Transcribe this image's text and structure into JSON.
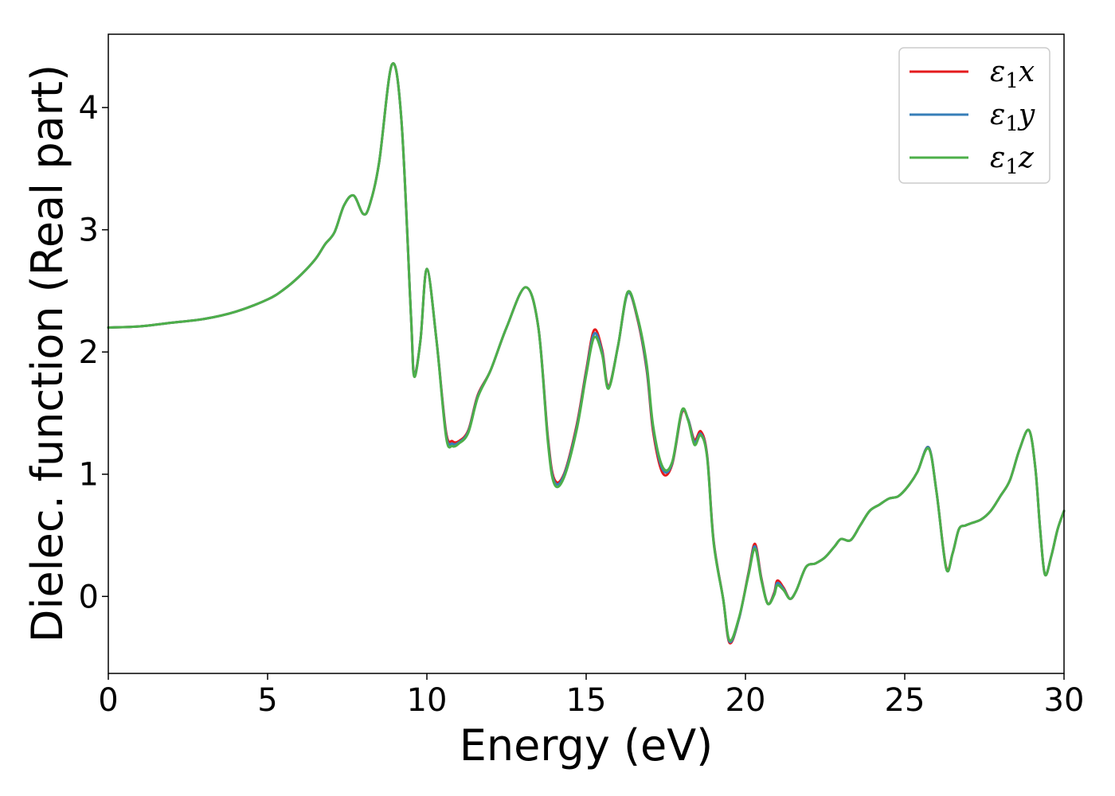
{
  "chart_data": {
    "type": "line",
    "xlabel": "Energy (eV)",
    "ylabel": "Dielec. function (Real part)",
    "xlim": [
      0,
      30
    ],
    "ylim": [
      -0.63,
      4.6
    ],
    "xticks": [
      0,
      5,
      10,
      15,
      20,
      25,
      30
    ],
    "yticks": [
      0,
      1,
      2,
      3,
      4
    ],
    "grid": false,
    "legend_position": "top-right",
    "series": [
      {
        "name": "ε1x",
        "symbol": "ε",
        "sub": "1",
        "axis": "x",
        "color": "#e41a1c",
        "x": [
          0,
          1,
          2,
          3,
          4,
          5,
          5.5,
          6,
          6.5,
          6.8,
          7.1,
          7.4,
          7.7,
          8.0,
          8.2,
          8.5,
          8.9,
          9.2,
          9.5,
          9.6,
          9.8,
          10.0,
          10.3,
          10.6,
          10.8,
          11.0,
          11.3,
          11.6,
          12.0,
          12.5,
          13.1,
          13.5,
          13.8,
          14.0,
          14.3,
          14.7,
          15.0,
          15.25,
          15.5,
          15.7,
          16.0,
          16.3,
          16.6,
          16.9,
          17.1,
          17.4,
          17.7,
          18.0,
          18.2,
          18.4,
          18.6,
          18.8,
          19.0,
          19.3,
          19.5,
          19.8,
          20.1,
          20.3,
          20.5,
          20.7,
          20.9,
          21.0,
          21.2,
          21.4,
          21.6,
          21.9,
          22.2,
          22.5,
          22.8,
          23.0,
          23.3,
          23.6,
          23.9,
          24.2,
          24.5,
          24.8,
          25.1,
          25.4,
          25.75,
          26.0,
          26.3,
          26.5,
          26.7,
          26.9,
          27.1,
          27.4,
          27.7,
          28.0,
          28.3,
          28.6,
          28.9,
          29.1,
          29.25,
          29.4,
          29.6,
          29.8,
          30.0
        ],
        "values": [
          2.2,
          2.21,
          2.24,
          2.27,
          2.33,
          2.43,
          2.51,
          2.62,
          2.76,
          2.88,
          2.98,
          3.2,
          3.28,
          3.13,
          3.2,
          3.55,
          4.35,
          3.9,
          2.3,
          1.82,
          2.1,
          2.68,
          2.1,
          1.35,
          1.27,
          1.27,
          1.36,
          1.65,
          1.85,
          2.2,
          2.53,
          2.2,
          1.3,
          0.96,
          1.0,
          1.4,
          1.85,
          2.18,
          2.02,
          1.72,
          2.05,
          2.48,
          2.28,
          1.85,
          1.35,
          1.01,
          1.08,
          1.5,
          1.45,
          1.28,
          1.35,
          1.15,
          0.46,
          -0.02,
          -0.38,
          -0.18,
          0.2,
          0.43,
          0.15,
          -0.06,
          0.03,
          0.13,
          0.07,
          -0.02,
          0.05,
          0.24,
          0.27,
          0.32,
          0.41,
          0.47,
          0.46,
          0.58,
          0.7,
          0.75,
          0.8,
          0.82,
          0.9,
          1.02,
          1.22,
          0.85,
          0.24,
          0.35,
          0.55,
          0.58,
          0.6,
          0.63,
          0.7,
          0.82,
          0.95,
          1.2,
          1.36,
          1.05,
          0.55,
          0.18,
          0.33,
          0.55,
          0.7
        ]
      },
      {
        "name": "ε1y",
        "symbol": "ε",
        "sub": "1",
        "axis": "y",
        "color": "#377eb8",
        "x": [
          0,
          1,
          2,
          3,
          4,
          5,
          5.5,
          6,
          6.5,
          6.8,
          7.1,
          7.4,
          7.7,
          8.0,
          8.2,
          8.5,
          8.9,
          9.2,
          9.5,
          9.6,
          9.8,
          10.0,
          10.3,
          10.6,
          10.8,
          11.0,
          11.3,
          11.6,
          12.0,
          12.5,
          13.1,
          13.5,
          13.8,
          14.0,
          14.3,
          14.7,
          15.0,
          15.25,
          15.5,
          15.7,
          16.0,
          16.3,
          16.6,
          16.9,
          17.1,
          17.4,
          17.7,
          18.0,
          18.2,
          18.4,
          18.6,
          18.8,
          19.0,
          19.3,
          19.5,
          19.8,
          20.1,
          20.3,
          20.5,
          20.7,
          20.9,
          21.0,
          21.2,
          21.4,
          21.6,
          21.9,
          22.2,
          22.5,
          22.8,
          23.0,
          23.3,
          23.6,
          23.9,
          24.2,
          24.5,
          24.8,
          25.1,
          25.4,
          25.75,
          26.0,
          26.3,
          26.5,
          26.7,
          26.9,
          27.1,
          27.4,
          27.7,
          28.0,
          28.3,
          28.6,
          28.9,
          29.1,
          29.25,
          29.4,
          29.6,
          29.8,
          30.0
        ],
        "values": [
          2.2,
          2.21,
          2.24,
          2.27,
          2.33,
          2.43,
          2.51,
          2.62,
          2.76,
          2.88,
          2.98,
          3.2,
          3.28,
          3.13,
          3.2,
          3.55,
          4.35,
          3.9,
          2.3,
          1.81,
          2.1,
          2.68,
          2.1,
          1.33,
          1.25,
          1.26,
          1.35,
          1.64,
          1.85,
          2.2,
          2.53,
          2.2,
          1.28,
          0.94,
          0.99,
          1.38,
          1.83,
          2.15,
          2.0,
          1.71,
          2.05,
          2.48,
          2.29,
          1.87,
          1.38,
          1.04,
          1.09,
          1.51,
          1.45,
          1.26,
          1.33,
          1.14,
          0.45,
          -0.02,
          -0.37,
          -0.18,
          0.19,
          0.41,
          0.14,
          -0.06,
          0.02,
          0.11,
          0.06,
          -0.02,
          0.05,
          0.24,
          0.27,
          0.32,
          0.41,
          0.47,
          0.46,
          0.58,
          0.7,
          0.75,
          0.8,
          0.82,
          0.9,
          1.02,
          1.22,
          0.85,
          0.23,
          0.35,
          0.55,
          0.58,
          0.6,
          0.63,
          0.7,
          0.82,
          0.95,
          1.2,
          1.36,
          1.05,
          0.55,
          0.18,
          0.33,
          0.55,
          0.7
        ]
      },
      {
        "name": "ε1z",
        "symbol": "ε",
        "sub": "1",
        "axis": "z",
        "color": "#4daf4a",
        "x": [
          0,
          1,
          2,
          3,
          4,
          5,
          5.5,
          6,
          6.5,
          6.8,
          7.1,
          7.4,
          7.7,
          8.0,
          8.2,
          8.5,
          8.9,
          9.2,
          9.5,
          9.6,
          9.8,
          10.0,
          10.3,
          10.6,
          10.8,
          11.0,
          11.3,
          11.6,
          12.0,
          12.5,
          13.1,
          13.5,
          13.8,
          14.0,
          14.3,
          14.7,
          15.0,
          15.25,
          15.5,
          15.7,
          16.0,
          16.3,
          16.6,
          16.9,
          17.1,
          17.4,
          17.7,
          18.0,
          18.2,
          18.4,
          18.6,
          18.8,
          19.0,
          19.3,
          19.5,
          19.8,
          20.1,
          20.3,
          20.5,
          20.7,
          20.9,
          21.0,
          21.2,
          21.4,
          21.6,
          21.9,
          22.2,
          22.5,
          22.8,
          23.0,
          23.3,
          23.6,
          23.9,
          24.2,
          24.5,
          24.8,
          25.1,
          25.4,
          25.75,
          26.0,
          26.3,
          26.5,
          26.7,
          26.9,
          27.1,
          27.4,
          27.7,
          28.0,
          28.3,
          28.6,
          28.9,
          29.1,
          29.25,
          29.4,
          29.6,
          29.8,
          30.0
        ],
        "values": [
          2.2,
          2.21,
          2.24,
          2.27,
          2.33,
          2.43,
          2.51,
          2.62,
          2.76,
          2.88,
          2.98,
          3.2,
          3.28,
          3.13,
          3.2,
          3.55,
          4.35,
          3.9,
          2.3,
          1.8,
          2.1,
          2.68,
          2.1,
          1.31,
          1.23,
          1.25,
          1.34,
          1.63,
          1.85,
          2.2,
          2.53,
          2.2,
          1.26,
          0.92,
          0.97,
          1.36,
          1.81,
          2.12,
          1.98,
          1.7,
          2.05,
          2.49,
          2.3,
          1.9,
          1.4,
          1.06,
          1.1,
          1.52,
          1.44,
          1.24,
          1.32,
          1.13,
          0.44,
          -0.02,
          -0.36,
          -0.17,
          0.18,
          0.39,
          0.13,
          -0.06,
          0.01,
          0.09,
          0.05,
          -0.02,
          0.05,
          0.24,
          0.27,
          0.32,
          0.41,
          0.47,
          0.46,
          0.58,
          0.7,
          0.75,
          0.8,
          0.82,
          0.9,
          1.02,
          1.21,
          0.85,
          0.23,
          0.35,
          0.55,
          0.58,
          0.6,
          0.63,
          0.7,
          0.82,
          0.95,
          1.2,
          1.36,
          1.05,
          0.55,
          0.18,
          0.33,
          0.55,
          0.7
        ]
      }
    ]
  }
}
